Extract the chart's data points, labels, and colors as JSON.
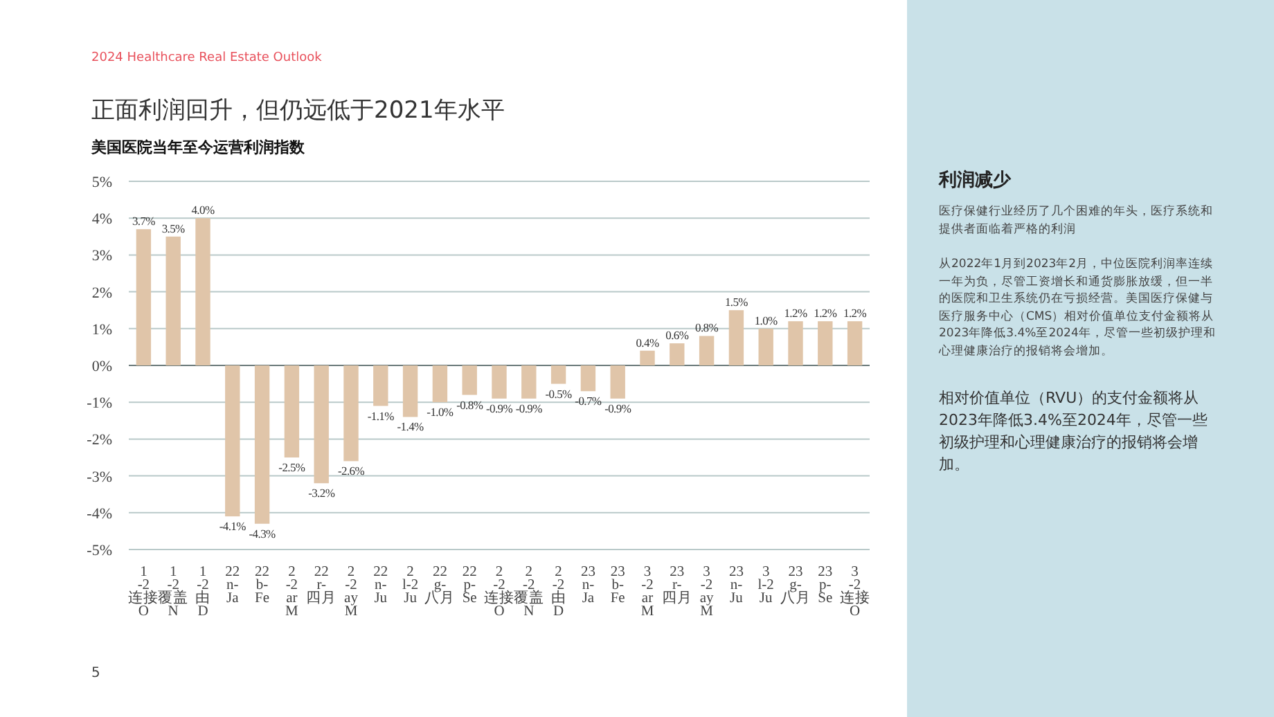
{
  "chart_data": {
    "type": "bar",
    "title": "正面利润回升，但仍远低于2021年水平",
    "subtitle": "美国医院当年至今运营利润指数",
    "categories": [
      "1\n-2\n连接\nO",
      "1\n-2\n覆盖\nN",
      "1\n-2\n由\nD",
      "22\nn-\nJa",
      "22\nb-\nFe",
      "2\n-2\nar\nM",
      "22\nr-\n四月",
      "2\n-2\nay\nM",
      "22\nn-\nJu",
      "2\nl-2\nJu",
      "22\ng-\n八月",
      "22\np-\nSe",
      "2\n-2\n连接\nO",
      "2\n-2\n覆盖\nN",
      "2\n-2\n由\nD",
      "23\nn-\nJa",
      "23\nb-\nFe",
      "3\n-2\nar\nM",
      "23\nr-\n四月",
      "3\n-2\nay\nM",
      "23\nn-\nJu",
      "3\nl-2\nJu",
      "23\ng-\n八月",
      "23\np-\nSe",
      "3\n-2\n连接\nO"
    ],
    "values": [
      3.7,
      3.5,
      4.0,
      -4.1,
      -4.3,
      -2.5,
      -3.2,
      -2.6,
      -1.1,
      -1.4,
      -1.0,
      -0.8,
      -0.9,
      -0.9,
      -0.5,
      -0.7,
      -0.9,
      0.4,
      0.6,
      0.8,
      1.5,
      1.0,
      1.2,
      1.2,
      1.2
    ],
    "value_labels": [
      "3.7%",
      "3.5%",
      "4.0%",
      "-4.1%",
      "-4.3%",
      "-2.5%",
      "-3.2%",
      "-2.6%",
      "-1.1%",
      "-1.4%",
      "-1.0%",
      "-0.8%",
      "-0.9%",
      "-0.9%",
      "-0.5%",
      "-0.7%",
      "-0.9%",
      "0.4%",
      "0.6%",
      "0.8%",
      "1.5%",
      "1.0%",
      "1.2%",
      "1.2%",
      "1.2%"
    ],
    "color": "#e0c5a9",
    "ylim": [
      -5,
      5
    ],
    "yticks": [
      {
        "value": -5,
        "label": "-5%"
      },
      {
        "value": -4,
        "label": "-4%"
      },
      {
        "value": -3,
        "label": "-3%"
      },
      {
        "value": -2,
        "label": "-2%"
      },
      {
        "value": -1,
        "label": "-1%"
      },
      {
        "value": 0,
        "label": "0%"
      },
      {
        "value": 1,
        "label": "1%"
      },
      {
        "value": 2,
        "label": "2%"
      },
      {
        "value": 3,
        "label": "3%"
      },
      {
        "value": 4,
        "label": "4%"
      },
      {
        "value": 5,
        "label": "5%"
      }
    ],
    "grid": "y",
    "annotations": [
      "2024 Healthcare Real Estate Outlook",
      "利润减少",
      "医疗保健行业经历了几个困难的年头，医疗系统和提供者面临着严格的利润",
      "从2022年1月到2023年2月，中位医院利润率连续一年为负，尽管工资增长和通货膨胀放缓，但一半的医院和卫生系统仍在亏损经营。美国医疗保健与医疗服务中心（CMS）相对价值单位支付金额将从2023年降低3.4%至2024年，尽管一些初级护理和心理健康治疗的报销将会增加。",
      "相对价值单位（RVU）的支付金额将从2023年降低3.4%至2024年，尽管一些初级护理和心理健康治疗的报销将会增加。",
      "5"
    ]
  }
}
